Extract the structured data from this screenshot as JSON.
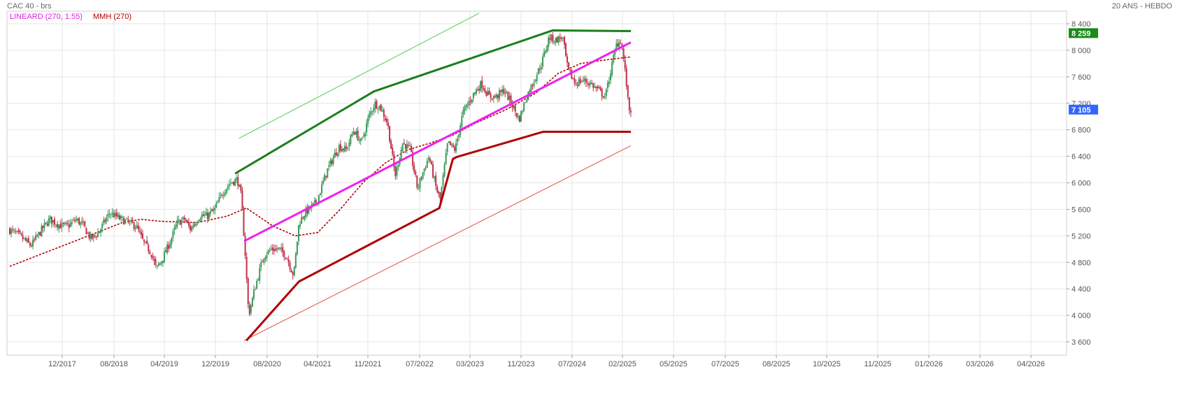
{
  "header": {
    "title": "CAC 40 - brs",
    "period_label": "20 ANS - HEBDO"
  },
  "legend": [
    {
      "label": "LINEARD (270, 1.55)",
      "color": "#e020e0"
    },
    {
      "label": "MMH (270)",
      "color": "#b00000"
    }
  ],
  "colors": {
    "candle_up": "#3a9a5a",
    "candle_down": "#c0304a",
    "resistance": "#1a7f1a",
    "support": "#b00000",
    "regression": "#ee22ee",
    "channel_upper": "#4cd04c",
    "channel_lower": "#e05040",
    "moving_average": "#b00000",
    "grid": "#e6e6e6",
    "badge_last": "#3366ff",
    "badge_resistance": "#1a8a1a"
  },
  "chart_data": {
    "type": "candlestick",
    "title": "CAC 40 - brs",
    "ylim": [
      3500,
      8550
    ],
    "x_range": [
      "2017-06",
      "2026-05"
    ],
    "y_ticks": [
      {
        "v": 3600,
        "label": "3 600"
      },
      {
        "v": 4000,
        "label": "4 000"
      },
      {
        "v": 4400,
        "label": "4 400"
      },
      {
        "v": 4800,
        "label": "4 800"
      },
      {
        "v": 5200,
        "label": "5 200"
      },
      {
        "v": 5600,
        "label": "5 600"
      },
      {
        "v": 6000,
        "label": "6 000"
      },
      {
        "v": 6400,
        "label": "6 400"
      },
      {
        "v": 6800,
        "label": "6 800"
      },
      {
        "v": 7200,
        "label": "7 200"
      },
      {
        "v": 7600,
        "label": "7 600"
      },
      {
        "v": 8000,
        "label": "8 000"
      },
      {
        "v": 8400,
        "label": "8 400"
      }
    ],
    "x_ticks": [
      {
        "t": 2017.917,
        "label": "12/2017"
      },
      {
        "t": 2018.583,
        "label": "08/2018"
      },
      {
        "t": 2019.25,
        "label": "04/2019"
      },
      {
        "t": 2019.917,
        "label": "12/2019"
      },
      {
        "t": 2020.583,
        "label": "08/2020"
      },
      {
        "t": 2021.25,
        "label": "04/2021"
      },
      {
        "t": 2021.833,
        "label": "11/2021"
      },
      {
        "t": 2022.5,
        "label": "07/2022"
      },
      {
        "t": 2023.167,
        "label": "03/2023"
      },
      {
        "t": 2023.833,
        "label": "11/2023"
      },
      {
        "t": 2024.5,
        "label": "07/2024"
      },
      {
        "t": 2025.083,
        "label": "02/2025"
      },
      {
        "t": 2025.333,
        "label": "05/2025"
      },
      {
        "t": 2025.5,
        "label": "07/2025"
      },
      {
        "t": 2025.583,
        "label": "08/2025"
      },
      {
        "t": 2025.75,
        "label": "10/2025"
      },
      {
        "t": 2025.833,
        "label": "11/2025"
      },
      {
        "t": 2026.0,
        "label": "01/2026"
      },
      {
        "t": 2026.167,
        "label": "03/2026"
      },
      {
        "t": 2026.25,
        "label": "04/2026"
      }
    ],
    "price_anchors": [
      [
        2017.0,
        5300
      ],
      [
        2017.15,
        5200
      ],
      [
        2017.3,
        5050
      ],
      [
        2017.45,
        5300
      ],
      [
        2017.55,
        5450
      ],
      [
        2017.7,
        5350
      ],
      [
        2017.8,
        5350
      ],
      [
        2017.9,
        5450
      ],
      [
        2018.0,
        5350
      ],
      [
        2018.1,
        5150
      ],
      [
        2018.2,
        5250
      ],
      [
        2018.35,
        5550
      ],
      [
        2018.5,
        5450
      ],
      [
        2018.6,
        5400
      ],
      [
        2018.7,
        5350
      ],
      [
        2018.8,
        5100
      ],
      [
        2018.9,
        4950
      ],
      [
        2018.97,
        4700
      ],
      [
        2019.05,
        4850
      ],
      [
        2019.15,
        5100
      ],
      [
        2019.25,
        5400
      ],
      [
        2019.35,
        5450
      ],
      [
        2019.42,
        5300
      ],
      [
        2019.55,
        5500
      ],
      [
        2019.65,
        5500
      ],
      [
        2019.75,
        5600
      ],
      [
        2019.85,
        5850
      ],
      [
        2019.95,
        6000
      ],
      [
        2020.05,
        6050
      ],
      [
        2020.1,
        5800
      ],
      [
        2020.15,
        5000
      ],
      [
        2020.2,
        4000
      ],
      [
        2020.28,
        4400
      ],
      [
        2020.4,
        4900
      ],
      [
        2020.5,
        5000
      ],
      [
        2020.6,
        5000
      ],
      [
        2020.7,
        4900
      ],
      [
        2020.8,
        4600
      ],
      [
        2020.87,
        5400
      ],
      [
        2020.95,
        5550
      ],
      [
        2021.1,
        5700
      ],
      [
        2021.25,
        6200
      ],
      [
        2021.4,
        6550
      ],
      [
        2021.5,
        6500
      ],
      [
        2021.6,
        6800
      ],
      [
        2021.7,
        6600
      ],
      [
        2021.8,
        7000
      ],
      [
        2021.88,
        7200
      ],
      [
        2021.95,
        7150
      ],
      [
        2022.05,
        6900
      ],
      [
        2022.15,
        6100
      ],
      [
        2022.25,
        6600
      ],
      [
        2022.35,
        6500
      ],
      [
        2022.45,
        5900
      ],
      [
        2022.5,
        6100
      ],
      [
        2022.6,
        6400
      ],
      [
        2022.7,
        5900
      ],
      [
        2022.75,
        5750
      ],
      [
        2022.85,
        6600
      ],
      [
        2022.95,
        6500
      ],
      [
        2023.05,
        7050
      ],
      [
        2023.2,
        7350
      ],
      [
        2023.3,
        7500
      ],
      [
        2023.4,
        7300
      ],
      [
        2023.5,
        7300
      ],
      [
        2023.6,
        7400
      ],
      [
        2023.7,
        7200
      ],
      [
        2023.8,
        6950
      ],
      [
        2023.9,
        7300
      ],
      [
        2024.0,
        7550
      ],
      [
        2024.1,
        7800
      ],
      [
        2024.2,
        8200
      ],
      [
        2024.28,
        8150
      ],
      [
        2024.38,
        8200
      ],
      [
        2024.45,
        7700
      ],
      [
        2024.55,
        7500
      ],
      [
        2024.65,
        7550
      ],
      [
        2024.75,
        7500
      ],
      [
        2024.85,
        7400
      ],
      [
        2024.95,
        7300
      ],
      [
        2025.05,
        7850
      ],
      [
        2025.1,
        8100
      ],
      [
        2025.16,
        8150
      ],
      [
        2025.2,
        7800
      ],
      [
        2025.23,
        7500
      ],
      [
        2025.26,
        7105
      ]
    ],
    "last_value": {
      "value": 7105,
      "label": "7 105"
    },
    "resistance_value": {
      "value": 8259,
      "label": "8 259"
    },
    "overlays": {
      "resistance_line": [
        [
          2020.0,
          6140
        ],
        [
          2021.85,
          7380
        ],
        [
          2024.23,
          8300
        ],
        [
          2025.27,
          8290
        ]
      ],
      "support_line": [
        [
          2020.15,
          3620
        ],
        [
          2020.85,
          4510
        ],
        [
          2022.72,
          5620
        ],
        [
          2022.9,
          6360
        ],
        [
          2022.95,
          6390
        ],
        [
          2024.1,
          6770
        ],
        [
          2025.27,
          6770
        ]
      ],
      "regression_line": [
        [
          2020.12,
          5120
        ],
        [
          2025.27,
          8120
        ]
      ],
      "channel_upper": [
        [
          2020.05,
          6670
        ],
        [
          2023.25,
          8560
        ]
      ],
      "channel_lower": [
        [
          2020.12,
          3620
        ],
        [
          2025.27,
          6560
        ]
      ],
      "moving_average": [
        [
          2017.0,
          4740
        ],
        [
          2017.5,
          4960
        ],
        [
          2018.0,
          5180
        ],
        [
          2018.5,
          5400
        ],
        [
          2018.75,
          5450
        ],
        [
          2019.0,
          5420
        ],
        [
          2019.5,
          5400
        ],
        [
          2019.9,
          5500
        ],
        [
          2020.15,
          5620
        ],
        [
          2020.5,
          5350
        ],
        [
          2020.8,
          5200
        ],
        [
          2021.1,
          5250
        ],
        [
          2021.4,
          5600
        ],
        [
          2021.7,
          6000
        ],
        [
          2022.0,
          6300
        ],
        [
          2022.3,
          6500
        ],
        [
          2022.6,
          6600
        ],
        [
          2022.9,
          6720
        ],
        [
          2023.2,
          6900
        ],
        [
          2023.6,
          7100
        ],
        [
          2024.0,
          7350
        ],
        [
          2024.3,
          7650
        ],
        [
          2024.6,
          7800
        ],
        [
          2024.9,
          7850
        ],
        [
          2025.27,
          7900
        ]
      ]
    }
  }
}
